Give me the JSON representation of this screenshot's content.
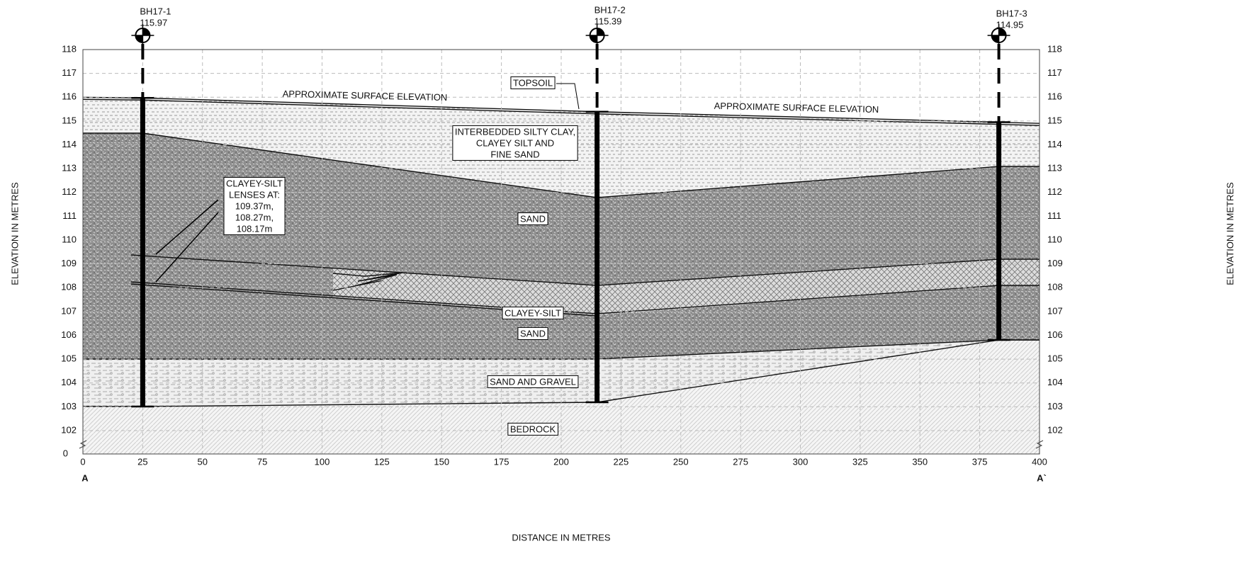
{
  "boreholes": [
    {
      "name": "BH17-1",
      "elevation": 115.97
    },
    {
      "name": "BH17-2",
      "elevation": 115.39
    },
    {
      "name": "BH17-3",
      "elevation": 114.95
    }
  ],
  "x_axis": {
    "label": "DISTANCE IN METRES",
    "ticks": [
      0,
      25,
      50,
      75,
      100,
      125,
      150,
      175,
      200,
      225,
      250,
      275,
      300,
      325,
      350,
      375,
      400
    ],
    "start_label": "A",
    "end_label": "A`"
  },
  "y_axis": {
    "label": "ELEVATION IN METRES",
    "ticks": [
      118,
      117,
      116,
      115,
      114,
      113,
      112,
      111,
      110,
      109,
      108,
      107,
      106,
      105,
      104,
      103,
      102
    ],
    "break_tick": 0
  },
  "annotations": {
    "surface": [
      "APPROXIMATE SURFACE ELEVATION",
      "APPROXIMATE SURFACE ELEVATION"
    ],
    "lenses": [
      "CLAYEY-SILT",
      "LENSES AT:",
      "109.37m,",
      "108.27m,",
      "108.17m"
    ]
  },
  "layers": {
    "topsoil": "TOPSOIL",
    "silty_clay": [
      "INTERBEDDED SILTY CLAY,",
      "CLAYEY SILT AND",
      "FINE SAND"
    ],
    "sand_upper": "SAND",
    "clayey_silt": "CLAYEY-SILT",
    "sand_lower": "SAND",
    "sand_gravel": "SAND AND GRAVEL",
    "bedrock": "BEDROCK"
  }
}
